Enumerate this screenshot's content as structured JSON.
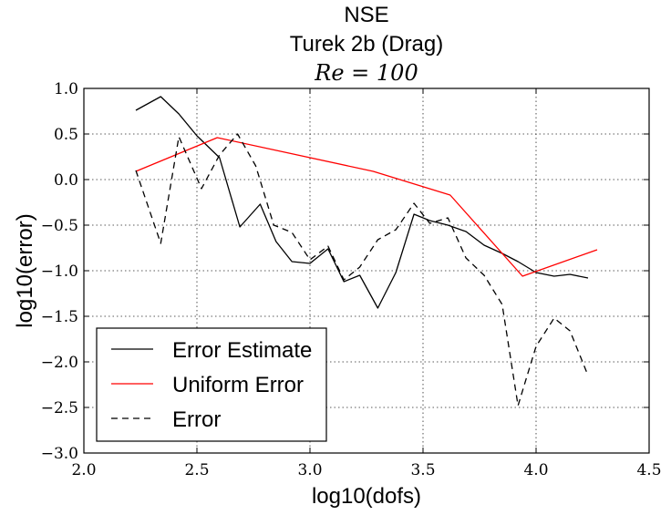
{
  "chart_data": {
    "type": "line",
    "title_lines": [
      "NSE",
      "Turek 2b (Drag)"
    ],
    "subtitle": "Re = 100",
    "xlabel": "log10(dofs)",
    "ylabel": "log10(error)",
    "xlim": [
      2.0,
      4.5
    ],
    "ylim": [
      -3.0,
      1.0
    ],
    "grid": true,
    "legend_position": "lower-left",
    "x_ticks": [
      2.0,
      2.5,
      3.0,
      3.5,
      4.0,
      4.5
    ],
    "x_tick_labels": [
      "2.0",
      "2.5",
      "3.0",
      "3.5",
      "4.0",
      "4.5"
    ],
    "y_ticks": [
      1.0,
      0.5,
      0.0,
      -0.5,
      -1.0,
      -1.5,
      -2.0,
      -2.5,
      -3.0
    ],
    "y_tick_labels": [
      "1.0",
      "0.5",
      "0.0",
      "−0.5",
      "−1.0",
      "−1.5",
      "−2.0",
      "−2.5",
      "−3.0"
    ],
    "series": [
      {
        "name": "Error Estimate",
        "color": "#000000",
        "style": "solid",
        "x": [
          2.23,
          2.34,
          2.42,
          2.5,
          2.6,
          2.69,
          2.78,
          2.85,
          2.92,
          3.0,
          3.08,
          3.15,
          3.22,
          3.3,
          3.38,
          3.46,
          3.53,
          3.61,
          3.69,
          3.77,
          3.85,
          3.92,
          4.0,
          4.08,
          4.15,
          4.23
        ],
        "y": [
          0.76,
          0.91,
          0.72,
          0.48,
          0.24,
          -0.52,
          -0.27,
          -0.68,
          -0.9,
          -0.92,
          -0.76,
          -1.12,
          -1.05,
          -1.41,
          -1.02,
          -0.38,
          -0.45,
          -0.5,
          -0.57,
          -0.72,
          -0.81,
          -0.9,
          -1.02,
          -1.06,
          -1.04,
          -1.08
        ]
      },
      {
        "name": "Uniform Error",
        "color": "#ff0000",
        "style": "solid",
        "x": [
          2.23,
          2.59,
          3.28,
          3.62,
          3.94,
          4.27
        ],
        "y": [
          0.09,
          0.46,
          0.09,
          -0.17,
          -1.06,
          -0.77
        ]
      },
      {
        "name": "Error",
        "color": "#000000",
        "style": "dashed",
        "x": [
          2.23,
          2.34,
          2.42,
          2.52,
          2.6,
          2.68,
          2.76,
          2.84,
          2.92,
          3.0,
          3.08,
          3.15,
          3.22,
          3.3,
          3.38,
          3.46,
          3.53,
          3.61,
          3.69,
          3.77,
          3.85,
          3.92,
          4.0,
          4.08,
          4.15,
          4.23
        ],
        "y": [
          0.1,
          -0.7,
          0.47,
          -0.1,
          0.27,
          0.5,
          0.15,
          -0.5,
          -0.58,
          -0.88,
          -0.73,
          -1.1,
          -0.96,
          -0.66,
          -0.55,
          -0.26,
          -0.48,
          -0.42,
          -0.86,
          -1.05,
          -1.37,
          -2.48,
          -1.83,
          -1.52,
          -1.66,
          -2.15
        ]
      }
    ]
  }
}
